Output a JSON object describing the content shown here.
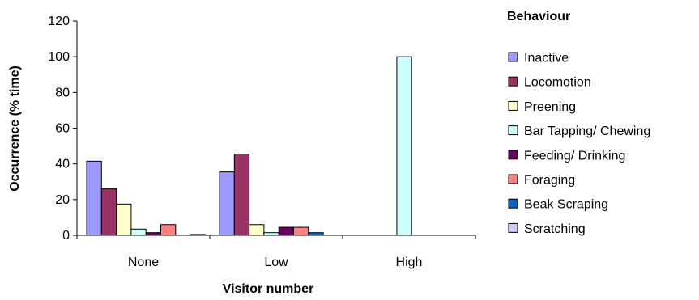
{
  "chart_data": {
    "type": "bar",
    "title": "",
    "xlabel": "Visitor number",
    "ylabel": "Occurrence (% time)",
    "ylim": [
      0,
      120
    ],
    "yticks": [
      0,
      20,
      40,
      60,
      80,
      100,
      120
    ],
    "grid": false,
    "legend_title": "Behaviour",
    "legend_position": "right",
    "categories": [
      "None",
      "Low",
      "High"
    ],
    "series": [
      {
        "name": "Inactive",
        "color": "#9999ff",
        "values": [
          41.5,
          35.5,
          0
        ]
      },
      {
        "name": "Locomotion",
        "color": "#993366",
        "values": [
          26,
          45.5,
          0
        ]
      },
      {
        "name": "Preening",
        "color": "#ffffcc",
        "values": [
          17.5,
          6,
          0
        ]
      },
      {
        "name": "Bar Tapping/ Chewing",
        "color": "#ccffff",
        "values": [
          3.5,
          1.5,
          100
        ]
      },
      {
        "name": "Feeding/ Drinking",
        "color": "#660066",
        "values": [
          1.5,
          4.5,
          0
        ]
      },
      {
        "name": "Foraging",
        "color": "#ff8080",
        "values": [
          6,
          4.5,
          0
        ]
      },
      {
        "name": "Beak Scraping",
        "color": "#0066cc",
        "values": [
          0,
          1.5,
          0
        ]
      },
      {
        "name": "Scratching",
        "color": "#ccccff",
        "values": [
          0.5,
          0,
          0
        ]
      }
    ]
  }
}
